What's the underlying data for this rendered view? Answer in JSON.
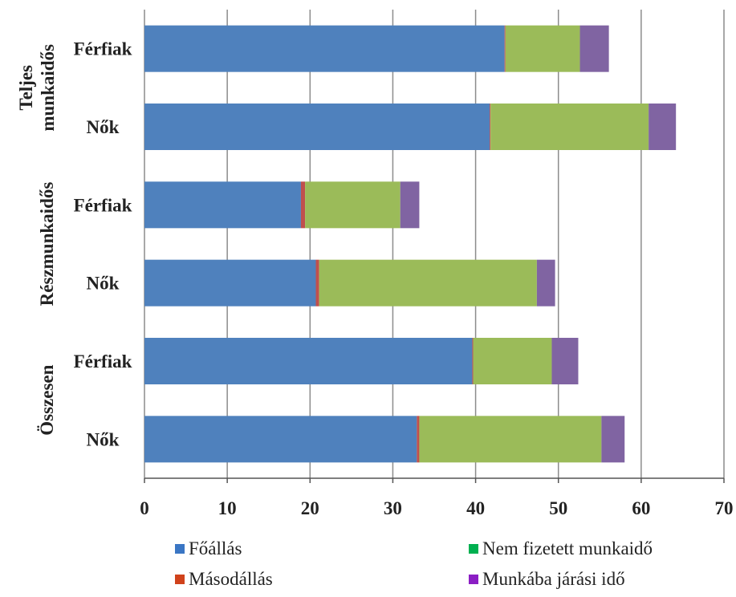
{
  "chart_data": {
    "type": "bar",
    "orientation": "horizontal",
    "stacked": true,
    "title": "",
    "xlabel": "",
    "ylabel": "",
    "xlim": [
      0,
      70
    ],
    "x_ticks": [
      0,
      10,
      20,
      30,
      40,
      50,
      60,
      70
    ],
    "grid": true,
    "legend_position": "bottom",
    "groups": [
      {
        "label": "Teljes munkaidős",
        "lines": [
          "Teljes",
          "munkaidős"
        ],
        "categories": [
          "Férfiak",
          "Nők"
        ]
      },
      {
        "label": "Részmunkaidős",
        "lines": [
          "Részmunkaidős"
        ],
        "categories": [
          "Férfiak",
          "Nők"
        ]
      },
      {
        "label": "Összesen",
        "lines": [
          "Összesen"
        ],
        "categories": [
          "Férfiak",
          "Nők"
        ]
      }
    ],
    "categories": [
      "Teljes munkaidős – Férfiak",
      "Teljes munkaidős – Nők",
      "Részmunkaidős – Férfiak",
      "Részmunkaidős – Nők",
      "Összesen – Férfiak",
      "Összesen – Nők"
    ],
    "series": [
      {
        "name": "Főállás",
        "color": "#4f81bd",
        "legend_color": "#3a76c4",
        "values": [
          43.5,
          41.7,
          18.9,
          20.7,
          39.6,
          32.9
        ]
      },
      {
        "name": "Másodállás",
        "color": "#c0504d",
        "legend_color": "#d0421b",
        "values": [
          0.1,
          0.1,
          0.5,
          0.4,
          0.1,
          0.3
        ]
      },
      {
        "name": "Nem fizetett munkaidő",
        "color": "#9bbb59",
        "legend_color": "#00b050",
        "values": [
          9.0,
          19.1,
          11.5,
          26.3,
          9.5,
          22.0
        ]
      },
      {
        "name": "Munkába járási idő",
        "color": "#8064a2",
        "legend_color": "#8b1ec4",
        "values": [
          3.5,
          3.3,
          2.3,
          2.2,
          3.2,
          2.8
        ]
      }
    ]
  }
}
